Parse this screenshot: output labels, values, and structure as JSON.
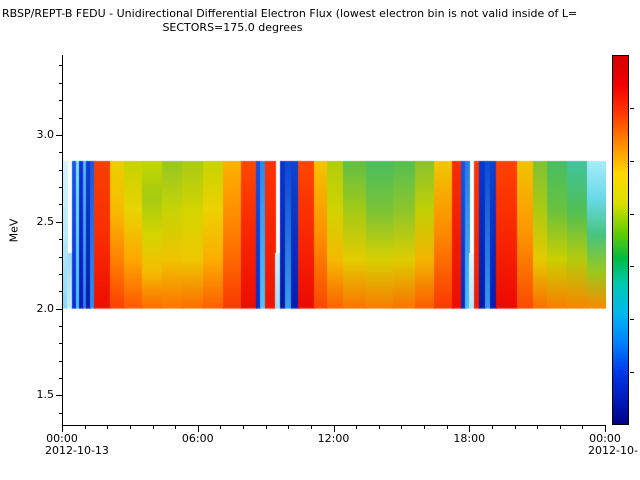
{
  "title": "RBSP/REPT-B  FEDU - Unidirectional Differential Electron Flux (lowest electron bin is not valid inside of L=",
  "subtitle": "SECTORS=175.0 degrees",
  "axes": {
    "ylabel": "MeV",
    "x_date_left": "2012-10-13",
    "x_date_right": "2012-10-"
  },
  "chart_data": {
    "type": "heatmap",
    "title": "RBSP/REPT-B  FEDU - Unidirectional Differential Electron Flux (lowest electron bin is not valid inside of L=",
    "subtitle": "SECTORS=175.0 degrees",
    "ylabel": "MeV",
    "ylim": [
      1.33,
      3.46
    ],
    "yticks": [
      {
        "value": 1.5,
        "label": "1.5"
      },
      {
        "value": 2.0,
        "label": "2.0"
      },
      {
        "value": 2.5,
        "label": "2.5"
      },
      {
        "value": 3.0,
        "label": "3.0"
      }
    ],
    "y_minor_from": 1.4,
    "y_minor_to": 3.4,
    "y_minor_step": 0.1,
    "xlim_hours": [
      0,
      24
    ],
    "xticks": [
      {
        "hours": 0,
        "label": "00:00"
      },
      {
        "hours": 6,
        "label": "06:00"
      },
      {
        "hours": 12,
        "label": "12:00"
      },
      {
        "hours": 18,
        "label": "18:00"
      },
      {
        "hours": 24,
        "label": "00:00"
      }
    ],
    "x_minor_step_hours": 1,
    "x_date_left": "2012-10-13",
    "x_date_right": "2012-10-",
    "energy_range_mev": [
      2.0,
      2.85
    ],
    "legend_position": "right",
    "grid": false,
    "colorbar": {
      "orientation": "vertical",
      "stops": [
        [
          0.0,
          "#d40000"
        ],
        [
          0.08,
          "#f20000"
        ],
        [
          0.16,
          "#ff3c00"
        ],
        [
          0.24,
          "#ff8c00"
        ],
        [
          0.32,
          "#ffd800"
        ],
        [
          0.4,
          "#d8e000"
        ],
        [
          0.48,
          "#66cc00"
        ],
        [
          0.55,
          "#00bb44"
        ],
        [
          0.62,
          "#00c8b0"
        ],
        [
          0.7,
          "#00b8f0"
        ],
        [
          0.78,
          "#0080ff"
        ],
        [
          0.86,
          "#0038e8"
        ],
        [
          0.94,
          "#0018b8"
        ],
        [
          1.0,
          "#000088"
        ]
      ],
      "tick_count": 6
    },
    "segments": [
      {
        "t": [
          0.0,
          0.22
        ],
        "top": 2.85,
        "colors": [
          "#8fd8f8",
          "#b8ecff",
          "#d8f6ff"
        ]
      },
      {
        "t": [
          0.22,
          0.42
        ],
        "top": 2.32,
        "colors": [
          "#c8eeff",
          "#a0dcf8"
        ]
      },
      {
        "t": [
          0.42,
          0.58
        ],
        "top": 2.85,
        "colors": [
          "#0a2ed0",
          "#1b55e6"
        ]
      },
      {
        "t": [
          0.58,
          0.74
        ],
        "top": 2.85,
        "colors": [
          "#45c2f4",
          "#83e2ff"
        ]
      },
      {
        "t": [
          0.74,
          0.9
        ],
        "top": 2.85,
        "colors": [
          "#0719b4",
          "#0a33d6"
        ]
      },
      {
        "t": [
          0.9,
          1.06
        ],
        "top": 2.85,
        "colors": [
          "#2e7cf0",
          "#5ab6f2"
        ]
      },
      {
        "t": [
          1.06,
          1.22
        ],
        "top": 2.85,
        "colors": [
          "#061ca8",
          "#0c3cd2"
        ]
      },
      {
        "t": [
          1.22,
          1.4
        ],
        "top": 2.85,
        "colors": [
          "#2f8fee",
          "#1b55e0"
        ]
      },
      {
        "t": [
          1.4,
          2.1
        ],
        "top": 2.85,
        "colors": [
          "#ee0e00",
          "#fc2d00",
          "#f64000"
        ]
      },
      {
        "t": [
          2.1,
          2.7
        ],
        "top": 2.85,
        "colors": [
          "#fb3f00",
          "#ff8200",
          "#f8bc00",
          "#ecce00"
        ]
      },
      {
        "t": [
          2.7,
          3.5
        ],
        "top": 2.85,
        "colors": [
          "#fd5800",
          "#ffa700",
          "#e9d400",
          "#c6d300"
        ]
      },
      {
        "t": [
          3.5,
          4.4
        ],
        "top": 2.85,
        "colors": [
          "#fd6b00",
          "#f6bd00",
          "#d4d600",
          "#a6cb12",
          "#c2d600"
        ]
      },
      {
        "t": [
          4.4,
          5.3
        ],
        "top": 2.85,
        "colors": [
          "#fd7400",
          "#f0c400",
          "#c8d306",
          "#96c722"
        ]
      },
      {
        "t": [
          5.3,
          6.2
        ],
        "top": 2.85,
        "colors": [
          "#fc6e00",
          "#eec800",
          "#d4d400",
          "#aacb16"
        ]
      },
      {
        "t": [
          6.2,
          7.1
        ],
        "top": 2.85,
        "colors": [
          "#fc5f00",
          "#fcae00",
          "#ecd200",
          "#c8d400"
        ]
      },
      {
        "t": [
          7.1,
          7.9
        ],
        "top": 2.85,
        "colors": [
          "#fb3a00",
          "#ff7e00",
          "#fdb400"
        ]
      },
      {
        "t": [
          7.9,
          8.55
        ],
        "top": 2.85,
        "colors": [
          "#ec0c00",
          "#f92600",
          "#ff4a00"
        ]
      },
      {
        "t": [
          8.55,
          8.75
        ],
        "top": 2.85,
        "colors": [
          "#0a2bc6",
          "#1751e0"
        ]
      },
      {
        "t": [
          8.75,
          8.95
        ],
        "top": 2.85,
        "colors": [
          "#52c4f2",
          "#2f86e8"
        ]
      },
      {
        "t": [
          8.95,
          9.4
        ],
        "top": 2.85,
        "colors": [
          "#ee1400",
          "#fb3300"
        ]
      },
      {
        "t": [
          9.4,
          9.6
        ],
        "top": 2.32,
        "colors": [
          "#a2def8",
          "#d2f1ff"
        ]
      },
      {
        "t": [
          9.6,
          9.85
        ],
        "top": 2.85,
        "colors": [
          "#061aa4",
          "#0b36ca"
        ]
      },
      {
        "t": [
          9.85,
          10.1
        ],
        "top": 2.85,
        "colors": [
          "#39a0ee",
          "#0e45d4"
        ]
      },
      {
        "t": [
          10.1,
          10.4
        ],
        "top": 2.85,
        "colors": [
          "#071eb0",
          "#1143d0"
        ]
      },
      {
        "t": [
          10.4,
          11.1
        ],
        "top": 2.85,
        "colors": [
          "#ec0a00",
          "#fa2800",
          "#ff4600"
        ]
      },
      {
        "t": [
          11.1,
          11.7
        ],
        "top": 2.85,
        "colors": [
          "#fa4600",
          "#ff9000",
          "#f4c400"
        ]
      },
      {
        "t": [
          11.7,
          12.4
        ],
        "top": 2.85,
        "colors": [
          "#fc6200",
          "#f5ba00",
          "#d2d300",
          "#b2cd0c"
        ]
      },
      {
        "t": [
          12.4,
          13.4
        ],
        "top": 2.85,
        "colors": [
          "#f97400",
          "#e4cc00",
          "#a4ca16",
          "#60bf46"
        ]
      },
      {
        "t": [
          13.4,
          14.6
        ],
        "top": 2.85,
        "colors": [
          "#f97c00",
          "#d6d100",
          "#7ac336",
          "#4abe60"
        ]
      },
      {
        "t": [
          14.6,
          15.6
        ],
        "top": 2.85,
        "colors": [
          "#f97400",
          "#decd00",
          "#8ec62a",
          "#55bf52"
        ]
      },
      {
        "t": [
          15.6,
          16.4
        ],
        "top": 2.85,
        "colors": [
          "#fb5c00",
          "#f3b500",
          "#c2cf05",
          "#8ac32e"
        ]
      },
      {
        "t": [
          16.4,
          17.2
        ],
        "top": 2.85,
        "colors": [
          "#fb3800",
          "#ff8800",
          "#f0c800"
        ]
      },
      {
        "t": [
          17.2,
          17.62
        ],
        "top": 2.85,
        "colors": [
          "#ec0e00",
          "#fa2e00"
        ]
      },
      {
        "t": [
          17.62,
          17.8
        ],
        "top": 2.85,
        "colors": [
          "#0a28c2",
          "#1856e2"
        ]
      },
      {
        "t": [
          17.8,
          17.98
        ],
        "top": 2.85,
        "colors": [
          "#4ebef0",
          "#2a7ae6"
        ]
      },
      {
        "t": [
          17.98,
          18.18
        ],
        "top": 2.32,
        "colors": [
          "#bce6fa",
          "#e6f6ff"
        ]
      },
      {
        "t": [
          18.18,
          18.42
        ],
        "top": 2.85,
        "colors": [
          "#f01a00",
          "#fb3600"
        ]
      },
      {
        "t": [
          18.42,
          18.66
        ],
        "top": 2.85,
        "colors": [
          "#061ba6",
          "#0b38cc"
        ]
      },
      {
        "t": [
          18.66,
          18.9
        ],
        "top": 2.85,
        "colors": [
          "#3898f0",
          "#0e4cd6"
        ]
      },
      {
        "t": [
          18.9,
          19.16
        ],
        "top": 2.85,
        "colors": [
          "#071db0",
          "#1142d0"
        ]
      },
      {
        "t": [
          19.16,
          20.1
        ],
        "top": 2.85,
        "colors": [
          "#ec0900",
          "#fa2600",
          "#ff4200"
        ]
      },
      {
        "t": [
          20.1,
          20.8
        ],
        "top": 2.85,
        "colors": [
          "#fa4a00",
          "#ff9400",
          "#f2c400"
        ]
      },
      {
        "t": [
          20.8,
          21.4
        ],
        "top": 2.85,
        "colors": [
          "#fa6e00",
          "#e6ca00",
          "#accb12",
          "#80c234"
        ]
      },
      {
        "t": [
          21.4,
          22.3
        ],
        "top": 2.85,
        "colors": [
          "#f97e00",
          "#cad000",
          "#6cc13e",
          "#46bf64"
        ]
      },
      {
        "t": [
          22.3,
          23.2
        ],
        "top": 2.85,
        "colors": [
          "#f98600",
          "#b4cc0c",
          "#50bf56",
          "#3fc49e"
        ]
      },
      {
        "t": [
          23.2,
          24.0
        ],
        "top": 2.85,
        "colors": [
          "#f98a00",
          "#9ac91e",
          "#46c47e",
          "#6adaea",
          "#a8ecfa"
        ]
      }
    ]
  }
}
